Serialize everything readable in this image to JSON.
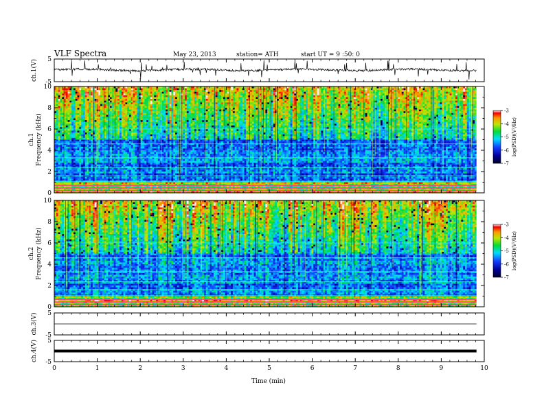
{
  "header": {
    "title": "VLF  Spectra",
    "date": "May 23, 2013",
    "station": "station= ATH",
    "start": "start  UT  =   9  :50: 0"
  },
  "chart_data": {
    "type": "spectrogram",
    "x": {
      "label": "Time  (min)",
      "lim": [
        0,
        10
      ],
      "ticks": [
        "0",
        "1",
        "2",
        "3",
        "4",
        "5",
        "6",
        "7",
        "8",
        "9",
        "10"
      ],
      "data_end": 9.82
    },
    "panels": [
      {
        "kind": "waveform",
        "label": "ch.1(V)",
        "ylim": [
          -5,
          5
        ],
        "ticks": [
          "5",
          "-5"
        ],
        "level": 0.2,
        "noise": "high"
      },
      {
        "kind": "spectrogram",
        "label": "ch.1",
        "ylabel": "Frequency  (kHz)",
        "ylim": [
          0,
          10
        ],
        "ticks": [
          "0",
          "2",
          "4",
          "6",
          "8",
          "10"
        ],
        "colorbar": {
          "label": "log(PSD)(V²/Hz)",
          "ticks": [
            "-3",
            "-4",
            "-5",
            "-6",
            "-7"
          ],
          "range": [
            -7,
            -3
          ]
        }
      },
      {
        "kind": "spectrogram",
        "label": "ch.2",
        "ylabel": "Frequency  (kHz)",
        "ylim": [
          0,
          10
        ],
        "ticks": [
          "0",
          "2",
          "4",
          "6",
          "8",
          "10"
        ],
        "colorbar": {
          "label": "log(PSD)(V²/Hz)",
          "ticks": [
            "-3",
            "-4",
            "-5",
            "-6",
            "-7"
          ],
          "range": [
            -7,
            -3
          ]
        }
      },
      {
        "kind": "waveform",
        "label": "ch.3(V)",
        "ylim": [
          -5,
          5
        ],
        "ticks": [
          "5",
          "-5"
        ],
        "level": 0,
        "noise": "none"
      },
      {
        "kind": "waveform",
        "label": "ch.4(V)",
        "ylim": [
          -5,
          5
        ],
        "ticks": [
          "5",
          "-5"
        ],
        "level": 0,
        "noise": "thick"
      }
    ]
  }
}
